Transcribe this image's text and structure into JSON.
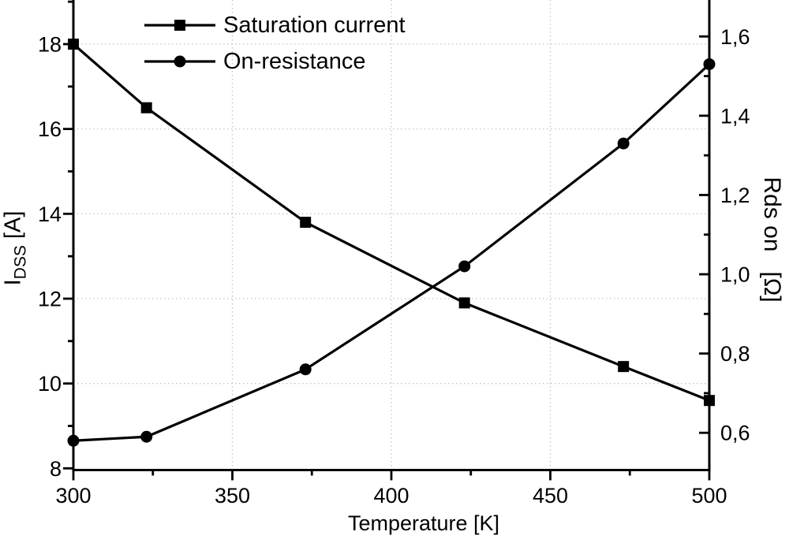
{
  "chart_data": {
    "type": "line",
    "title": "",
    "xlabel": "Temperature [K]",
    "ylabel_left": {
      "main": "I",
      "sub": "DSS",
      "unit": " [A]"
    },
    "ylabel_right": "Rds on   [Ω]",
    "x": [
      300,
      323,
      373,
      423,
      473,
      500
    ],
    "series": [
      {
        "name": "Saturation current",
        "axis": "left",
        "marker": "square",
        "color": "#000000",
        "values": [
          18.0,
          16.5,
          13.8,
          11.9,
          10.4,
          9.6
        ]
      },
      {
        "name": "On-resistance",
        "axis": "right",
        "marker": "circle",
        "color": "#000000",
        "values": [
          0.58,
          0.59,
          0.76,
          1.02,
          1.33,
          1.53
        ]
      }
    ],
    "legend": {
      "position": "top-left",
      "entries": [
        "Saturation current",
        "On-resistance"
      ]
    },
    "x_axis": {
      "range": [
        300,
        500
      ],
      "ticks_major": [
        300,
        350,
        400,
        450,
        500
      ],
      "tick_labels": [
        "300",
        "350",
        "400",
        "450",
        "500"
      ],
      "ticks_minor": [
        325,
        375,
        425,
        475
      ]
    },
    "left_axis": {
      "range_bottom_top": [
        7.96,
        19.04
      ],
      "ticks_major": [
        8,
        10,
        12,
        14,
        16,
        18
      ],
      "tick_labels": [
        "8",
        "10",
        "12",
        "14",
        "16",
        "18"
      ],
      "ticks_minor": [
        9,
        11,
        13,
        15,
        17,
        19
      ]
    },
    "right_axis": {
      "range_bottom_top": [
        0.506,
        1.692
      ],
      "ticks_major": [
        0.6,
        0.8,
        1.0,
        1.2,
        1.4,
        1.6
      ],
      "tick_labels": [
        "0,6",
        "0,8",
        "1,0",
        "1,2",
        "1,4",
        "1,6"
      ],
      "ticks_minor": [
        0.7,
        0.9,
        1.1,
        1.3,
        1.5
      ]
    },
    "grid": {
      "show": true,
      "color": "#c3c3c3",
      "style": "dotted"
    },
    "colors": {
      "foreground": "#000000",
      "background": "#ffffff"
    }
  }
}
